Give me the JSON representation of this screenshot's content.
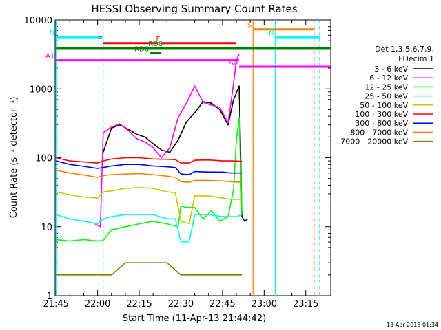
{
  "chart_data": {
    "type": "line",
    "title": "HESSI Observing Summary Count Rates",
    "xlabel": "Start Time (11-Apr-13 21:44:42)",
    "ylabel": "Count Rate (s⁻¹ detector⁻¹)",
    "yscale": "log",
    "xlim": [
      "21:44:42",
      "23:24:00"
    ],
    "ylim": [
      1,
      10000
    ],
    "x_ticks": [
      "21:45",
      "22:00",
      "22:15",
      "22:30",
      "22:45",
      "23:00",
      "23:15"
    ],
    "y_ticks": [
      {
        "value": 1,
        "label": "1"
      },
      {
        "value": 10,
        "label": "10"
      },
      {
        "value": 100,
        "label": "100"
      },
      {
        "value": 1000,
        "label": "1000"
      },
      {
        "value": 10000,
        "label": "10000"
      }
    ],
    "legend_header": [
      "Det 1,3,5,6,7,9,",
      "FDecim 1"
    ],
    "legend_position": "right",
    "series": [
      {
        "name": "3 - 6 keV",
        "color": "#000000",
        "x": [
          "22:02",
          "22:05",
          "22:08",
          "22:11",
          "22:14",
          "22:17",
          "22:20",
          "22:23",
          "22:26",
          "22:29",
          "22:32",
          "22:35",
          "22:38",
          "22:41",
          "22:44",
          "22:47",
          "22:49",
          "22:51",
          "22:52",
          "22:53",
          "22:54"
        ],
        "y": [
          120,
          270,
          300,
          260,
          220,
          200,
          160,
          130,
          120,
          180,
          330,
          450,
          650,
          620,
          500,
          300,
          700,
          1100,
          14,
          12,
          13
        ]
      },
      {
        "name": "6 - 12 keV",
        "color": "#ff00ff",
        "x": [
          "21:59",
          "22:01",
          "22:02",
          "22:05",
          "22:08",
          "22:11",
          "22:14",
          "22:17",
          "22:20",
          "22:23",
          "22:26",
          "22:29",
          "22:32",
          "22:35",
          "22:38",
          "22:41",
          "22:44",
          "22:47",
          "22:49",
          "22:50",
          "22:51"
        ],
        "y": [
          11,
          10,
          230,
          280,
          310,
          250,
          190,
          170,
          140,
          100,
          140,
          380,
          620,
          1100,
          640,
          580,
          540,
          320,
          1200,
          2600,
          3200
        ]
      },
      {
        "name": "12 - 25 keV",
        "color": "#00ff00",
        "x": [
          "21:45",
          "21:50",
          "21:55",
          "22:00",
          "22:02",
          "22:05",
          "22:10",
          "22:15",
          "22:20",
          "22:25",
          "22:29",
          "22:30",
          "22:32",
          "22:35",
          "22:38",
          "22:41",
          "22:44",
          "22:47",
          "22:49",
          "22:50",
          "22:51",
          "22:52"
        ],
        "y": [
          6.5,
          6.2,
          6.5,
          6.2,
          6.3,
          9,
          10,
          11,
          12,
          11,
          10,
          20,
          19,
          19,
          13,
          17,
          12,
          14,
          35,
          180,
          380,
          15
        ]
      },
      {
        "name": "25 - 50 keV",
        "color": "#00ffff",
        "x": [
          "21:45",
          "21:50",
          "21:55",
          "22:00",
          "22:02",
          "22:05",
          "22:10",
          "22:15",
          "22:20",
          "22:25",
          "22:28",
          "22:30",
          "22:33",
          "22:35",
          "22:40",
          "22:45",
          "22:48",
          "22:50",
          "22:52"
        ],
        "y": [
          15,
          13,
          12,
          11,
          13,
          14,
          15,
          15,
          15,
          13,
          13,
          6,
          6,
          15,
          15,
          14,
          14,
          14,
          15
        ]
      },
      {
        "name": "50 - 100 keV",
        "color": "#c8c800",
        "x": [
          "21:45",
          "21:50",
          "21:55",
          "22:00",
          "22:02",
          "22:05",
          "22:10",
          "22:15",
          "22:20",
          "22:25",
          "22:28",
          "22:30",
          "22:33",
          "22:35",
          "22:40",
          "22:45",
          "22:48",
          "22:52"
        ],
        "y": [
          32,
          29,
          27,
          26,
          32,
          33,
          36,
          37,
          36,
          32,
          31,
          12,
          11,
          28,
          28,
          26,
          25,
          25
        ]
      },
      {
        "name": "100 - 300 keV",
        "color": "#ff0000",
        "x": [
          "21:45",
          "21:50",
          "21:55",
          "22:00",
          "22:02",
          "22:05",
          "22:10",
          "22:15",
          "22:20",
          "22:25",
          "22:28",
          "22:30",
          "22:33",
          "22:35",
          "22:40",
          "22:45",
          "22:48",
          "22:52"
        ],
        "y": [
          100,
          90,
          87,
          84,
          90,
          96,
          100,
          100,
          96,
          95,
          94,
          84,
          84,
          92,
          93,
          90,
          90,
          89
        ]
      },
      {
        "name": "300 - 800 keV",
        "color": "#0000ff",
        "x": [
          "21:45",
          "21:50",
          "21:55",
          "22:00",
          "22:02",
          "22:05",
          "22:10",
          "22:15",
          "22:20",
          "22:25",
          "22:28",
          "22:30",
          "22:33",
          "22:35",
          "22:40",
          "22:45",
          "22:48",
          "22:52"
        ],
        "y": [
          90,
          80,
          75,
          70,
          72,
          76,
          80,
          80,
          76,
          74,
          72,
          58,
          57,
          63,
          62,
          62,
          60,
          60
        ]
      },
      {
        "name": "800 - 7000 keV",
        "color": "#ff8000",
        "x": [
          "21:45",
          "21:50",
          "21:55",
          "22:00",
          "22:02",
          "22:05",
          "22:10",
          "22:15",
          "22:20",
          "22:25",
          "22:28",
          "22:30",
          "22:33",
          "22:35",
          "22:40",
          "22:45",
          "22:48",
          "22:52"
        ],
        "y": [
          66,
          60,
          56,
          52,
          55,
          57,
          58,
          59,
          57,
          54,
          52,
          45,
          44,
          47,
          47,
          46,
          45,
          44
        ]
      },
      {
        "name": "7000 - 20000 keV",
        "color": "#808000",
        "x": [
          "21:45",
          "21:50",
          "21:55",
          "22:00",
          "22:02",
          "22:05",
          "22:10",
          "22:15",
          "22:20",
          "22:25",
          "22:30",
          "22:35",
          "22:40",
          "22:45",
          "22:48",
          "22:52"
        ],
        "y": [
          2,
          2,
          2,
          2,
          2,
          2,
          3,
          3,
          3,
          3,
          2,
          2,
          2,
          2,
          2,
          2
        ]
      }
    ],
    "flag_bars": [
      {
        "label": "N",
        "color": "#00ffff",
        "y": 5600,
        "x_start": "21:45",
        "x_end": "22:02"
      },
      {
        "label": "N",
        "color": "#00ffff",
        "y": 5600,
        "x_start": "23:04",
        "x_end": "23:20"
      },
      {
        "label": "F",
        "color": "#ff0000",
        "y": 4600,
        "x_start": "22:02",
        "x_end": "22:22"
      },
      {
        "label": "F",
        "color": "#ff0000",
        "y": 4600,
        "x_start": "22:23",
        "x_end": "22:50"
      },
      {
        "label": "",
        "color": "#008000",
        "y": 3900,
        "x_start": "21:45",
        "x_end": "23:24"
      },
      {
        "label": "RD6",
        "color": "#008000",
        "y": 3300,
        "x_start": "22:19",
        "x_end": "22:23"
      },
      {
        "label": "RD8",
        "color": "#008000",
        "y": 3900,
        "x_start": "22:24",
        "x_end": "22:27"
      },
      {
        "label": "S",
        "color": "#ff8000",
        "y": 7300,
        "x_start": "22:56",
        "x_end": "23:18"
      },
      {
        "label": "A1",
        "color": "#ff00ff",
        "y": 2600,
        "x_start": "21:45",
        "x_end": "22:51"
      },
      {
        "label": "A0",
        "color": "#ff00ff",
        "y": 2100,
        "x_start": "22:51",
        "x_end": "23:24"
      }
    ],
    "vertical_markers": [
      {
        "x": "21:45",
        "color": "#00ffff",
        "style": "solid"
      },
      {
        "x": "22:02",
        "color": "#00ffff",
        "style": "dashed"
      },
      {
        "x": "22:56",
        "color": "#ff8000",
        "style": "solid"
      },
      {
        "x": "23:04",
        "color": "#00ffff",
        "style": "solid"
      },
      {
        "x": "23:18",
        "color": "#ff8000",
        "style": "dashed"
      },
      {
        "x": "23:20",
        "color": "#00ffff",
        "style": "dashed"
      }
    ],
    "footer_date": "13-Apr-2013 01:34"
  }
}
